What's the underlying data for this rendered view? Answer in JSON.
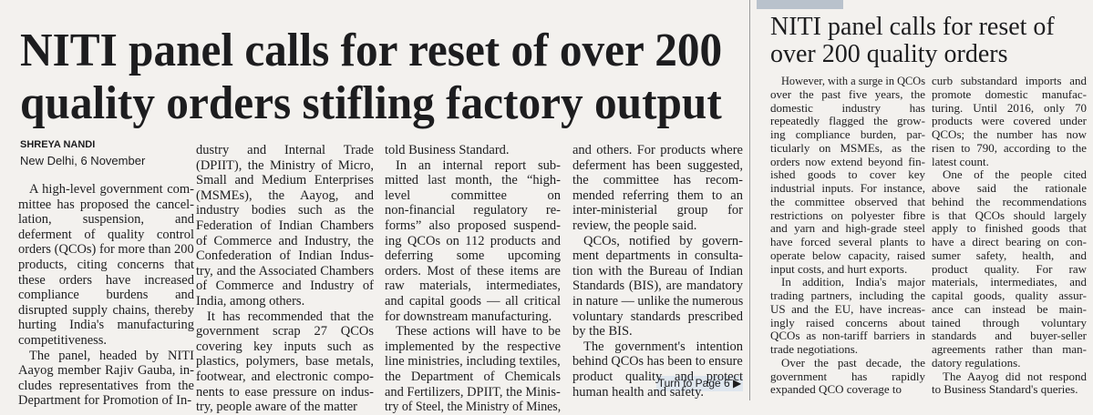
{
  "left_article": {
    "headline": [
      "NITI panel calls for reset of over 200",
      "quality orders stifling factory output"
    ],
    "byline": "SHREYA NANDI",
    "dateline": "New Delhi, 6 November",
    "columns": [
      [
        [
          "A high-level government com-",
          "mittee has proposed the cancel-",
          "lation, suspension, and",
          "deferment of quality control",
          "orders (QCOs) for more than 200",
          "products, citing concerns that",
          "these orders have increased",
          "compliance burdens and",
          "disrupted supply chains, thereby",
          "hurting India's manufacturing",
          "competitiveness."
        ],
        [
          "The panel, headed by NITI",
          "Aayog member Rajiv Gauba, in-",
          "cludes representatives from the",
          "Department for Promotion of In-"
        ]
      ],
      [
        [
          "dustry and Internal Trade",
          "(DPIIT), the Ministry of Micro,",
          "Small and Medium Enterprises",
          "(MSMEs), the Aayog, and",
          "industry bodies such as the",
          "Federation of Indian Chambers",
          "of Commerce and Industry, the",
          "Confederation of Indian Indus-",
          "try, and the Associated Chambers",
          "of Commerce and Industry of",
          "India, among others."
        ],
        [
          "It has recommended that the",
          "government scrap 27 QCOs",
          "covering key inputs such as",
          "plastics, polymers, base metals,",
          "footwear, and electronic compo-",
          "nents to ease pressure on indus-",
          "try, people aware of the matter"
        ]
      ],
      [
        [
          "told Business Standard."
        ],
        [
          "In an internal report sub-",
          "mitted last month, the “high-",
          "level committee on",
          "non-financial regulatory re-",
          "forms” also proposed suspend-",
          "ing QCOs on 112 products and",
          "deferring some upcoming",
          "orders. Most of these items are",
          "raw materials, intermediates,",
          "and capital goods — all critical",
          "for downstream manufacturing."
        ],
        [
          "These actions will have to be",
          "implemented by the respective",
          "line ministries, including textiles,",
          "the Department of Chemicals",
          "and Fertilizers, DPIIT, the Minis-",
          "try of Steel, the Ministry of Mines,"
        ]
      ],
      [
        [
          "and others. For products where",
          "deferment has been suggested,",
          "the committee has recom-",
          "mended referring them to an",
          "inter-ministerial group for",
          "review, the people said."
        ],
        [
          "QCOs, notified by govern-",
          "ment departments in consulta-",
          "tion with the Bureau of Indian",
          "Standards (BIS), are mandatory",
          "in nature — unlike the numerous",
          "voluntary standards prescribed",
          "by the BIS."
        ],
        [
          "The government's intention",
          "behind QCOs has been to ensure",
          "product quality and protect",
          "human health and safety."
        ]
      ]
    ],
    "turn_to": "Turn to Page 6"
  },
  "right_article": {
    "headline": [
      "NITI panel calls for reset of",
      "over 200 quality orders"
    ],
    "columns": [
      [
        [
          "However, with a surge in QCOs",
          "over the past five years, the",
          "domestic industry has",
          "repeatedly flagged the grow-",
          "ing compliance burden, par-",
          "ticularly on MSMEs, as the",
          "orders now extend beyond fin-",
          "ished goods to cover key",
          "industrial inputs. For instance,",
          "the committee observed that",
          "restrictions on polyester fibre",
          "and yarn and high-grade steel",
          "have forced several plants to",
          "operate below capacity, raised",
          "input costs, and hurt exports."
        ],
        [
          "In addition, India's major",
          "trading partners, including the",
          "US and the EU, have increas-",
          "ingly raised concerns about",
          "QCOs as non-tariff barriers in",
          "trade negotiations."
        ],
        [
          "Over the past decade, the",
          "government has rapidly",
          "expanded QCO coverage to"
        ]
      ],
      [
        [
          "curb substandard imports and",
          "promote domestic manufac-",
          "turing. Until 2016, only 70",
          "products were covered under",
          "QCOs; the number has now",
          "risen to 790, according to the",
          "latest count."
        ],
        [
          "One of the people cited",
          "above said the rationale",
          "behind the recommendations",
          "is that QCOs should largely",
          "apply to finished goods that",
          "have a direct bearing on con-",
          "sumer safety, health, and",
          "product quality. For raw",
          "materials, intermediates, and",
          "capital goods, quality assur-",
          "ance can instead be main-",
          "tained through voluntary",
          "standards and buyer-seller",
          "agreements rather than man-",
          "datory regulations."
        ],
        [
          "The Aayog did not respond",
          "to Business Standard's queries."
        ]
      ]
    ]
  }
}
